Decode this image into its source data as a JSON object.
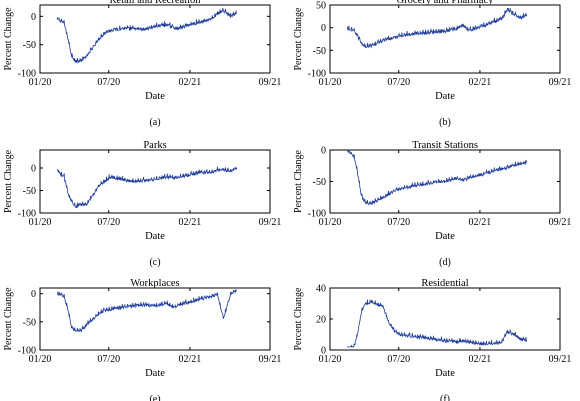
{
  "figure": {
    "x_ticks": [
      "01/20",
      "07/20",
      "02/21",
      "09/21"
    ]
  },
  "colors": {
    "line": "#1f3d99",
    "axis": "#000000"
  },
  "chart_data": [
    {
      "type": "line",
      "title": "Retail and Recreation",
      "xlabel": "Date",
      "ylabel": "Percent Change",
      "caption": "(a)",
      "ylim": [
        -100,
        20
      ],
      "yticks": [
        "0",
        "-50",
        "-100"
      ],
      "ytick_values": [
        0,
        -50,
        -100
      ],
      "xlim": [
        "2020-01-01",
        "2021-09-01"
      ],
      "x": [
        "2020-02-15",
        "2020-02-25",
        "2020-03-05",
        "2020-03-15",
        "2020-03-25",
        "2020-04-05",
        "2020-04-20",
        "2020-05-05",
        "2020-05-20",
        "2020-06-05",
        "2020-06-20",
        "2020-07-05",
        "2020-08-01",
        "2020-09-01",
        "2020-10-01",
        "2020-11-01",
        "2020-12-01",
        "2020-12-20",
        "2021-01-01",
        "2021-02-01",
        "2021-03-01",
        "2021-04-01",
        "2021-04-15",
        "2021-05-01",
        "2021-05-20",
        "2021-06-05"
      ],
      "y": [
        -5,
        -8,
        -12,
        -40,
        -70,
        -80,
        -78,
        -70,
        -55,
        -40,
        -30,
        -25,
        -22,
        -22,
        -24,
        -18,
        -15,
        -20,
        -22,
        -15,
        -10,
        -5,
        5,
        10,
        0,
        5
      ]
    },
    {
      "type": "line",
      "title": "Grocery and Pharmacy",
      "xlabel": "Date",
      "ylabel": "Percent Change",
      "caption": "(b)",
      "ylim": [
        -100,
        50
      ],
      "yticks": [
        "50",
        "0",
        "-50",
        "-100"
      ],
      "ytick_values": [
        50,
        0,
        -50,
        -100
      ],
      "xlim": [
        "2020-01-01",
        "2021-09-01"
      ],
      "x": [
        "2020-02-15",
        "2020-02-25",
        "2020-03-05",
        "2020-03-15",
        "2020-03-25",
        "2020-04-05",
        "2020-04-20",
        "2020-05-05",
        "2020-05-20",
        "2020-06-05",
        "2020-06-20",
        "2020-07-05",
        "2020-08-01",
        "2020-09-01",
        "2020-10-01",
        "2020-11-01",
        "2020-12-01",
        "2020-12-20",
        "2021-01-01",
        "2021-02-01",
        "2021-03-01",
        "2021-04-01",
        "2021-04-15",
        "2021-05-01",
        "2021-05-20",
        "2021-06-05"
      ],
      "y": [
        -2,
        -5,
        -8,
        -20,
        -35,
        -42,
        -40,
        -35,
        -28,
        -25,
        -22,
        -18,
        -15,
        -12,
        -10,
        -8,
        -2,
        5,
        -5,
        0,
        10,
        20,
        40,
        30,
        20,
        28
      ]
    },
    {
      "type": "line",
      "title": "Parks",
      "xlabel": "Date",
      "ylabel": "Percent Change",
      "caption": "(c)",
      "ylim": [
        -100,
        40
      ],
      "yticks": [
        "0",
        "-50",
        "-100"
      ],
      "ytick_values": [
        0,
        -50,
        -100
      ],
      "xlim": [
        "2020-01-01",
        "2021-09-01"
      ],
      "x": [
        "2020-02-15",
        "2020-02-25",
        "2020-03-05",
        "2020-03-15",
        "2020-03-25",
        "2020-04-05",
        "2020-04-20",
        "2020-05-05",
        "2020-05-20",
        "2020-06-05",
        "2020-06-20",
        "2020-07-05",
        "2020-08-01",
        "2020-09-01",
        "2020-10-01",
        "2020-11-01",
        "2020-12-01",
        "2020-12-20",
        "2021-01-01",
        "2021-02-01",
        "2021-03-01",
        "2021-04-01",
        "2021-04-15",
        "2021-05-01",
        "2021-05-20",
        "2021-06-05"
      ],
      "y": [
        -5,
        -15,
        -20,
        -55,
        -75,
        -85,
        -82,
        -80,
        -60,
        -40,
        -30,
        -20,
        -25,
        -30,
        -28,
        -25,
        -20,
        -22,
        -20,
        -15,
        -10,
        -10,
        -5,
        -5,
        -8,
        0
      ]
    },
    {
      "type": "line",
      "title": "Transit Stations",
      "xlabel": "Date",
      "ylabel": "Percent Change",
      "caption": "(d)",
      "ylim": [
        -100,
        0
      ],
      "yticks": [
        "0",
        "-50",
        "-100"
      ],
      "ytick_values": [
        0,
        -50,
        -100
      ],
      "xlim": [
        "2020-01-01",
        "2021-09-01"
      ],
      "x": [
        "2020-02-15",
        "2020-02-25",
        "2020-03-05",
        "2020-03-15",
        "2020-03-25",
        "2020-04-05",
        "2020-04-20",
        "2020-05-05",
        "2020-05-20",
        "2020-06-05",
        "2020-06-20",
        "2020-07-05",
        "2020-08-01",
        "2020-09-01",
        "2020-10-01",
        "2020-11-01",
        "2020-12-01",
        "2020-12-20",
        "2021-01-01",
        "2021-02-01",
        "2021-03-01",
        "2021-04-01",
        "2021-04-15",
        "2021-05-01",
        "2021-05-20",
        "2021-06-05"
      ],
      "y": [
        -2,
        -5,
        -10,
        -40,
        -75,
        -85,
        -85,
        -80,
        -75,
        -70,
        -65,
        -62,
        -58,
        -55,
        -52,
        -50,
        -45,
        -48,
        -45,
        -40,
        -35,
        -30,
        -28,
        -25,
        -22,
        -20
      ]
    },
    {
      "type": "line",
      "title": "Workplaces",
      "xlabel": "Date",
      "ylabel": "Percent Change",
      "caption": "(e)",
      "ylim": [
        -100,
        10
      ],
      "yticks": [
        "0",
        "-50",
        "-100"
      ],
      "ytick_values": [
        0,
        -50,
        -100
      ],
      "xlim": [
        "2020-01-01",
        "2021-09-01"
      ],
      "x": [
        "2020-02-15",
        "2020-02-25",
        "2020-03-05",
        "2020-03-15",
        "2020-03-25",
        "2020-04-05",
        "2020-04-20",
        "2020-05-05",
        "2020-05-20",
        "2020-06-05",
        "2020-06-20",
        "2020-07-05",
        "2020-08-01",
        "2020-09-01",
        "2020-10-01",
        "2020-11-01",
        "2020-12-01",
        "2020-12-20",
        "2021-01-01",
        "2021-02-01",
        "2021-03-01",
        "2021-04-01",
        "2021-04-15",
        "2021-05-01",
        "2021-05-20",
        "2021-06-05"
      ],
      "y": [
        0,
        -2,
        -5,
        -30,
        -60,
        -68,
        -65,
        -55,
        -45,
        -35,
        -30,
        -28,
        -25,
        -22,
        -20,
        -22,
        -18,
        -25,
        -20,
        -15,
        -10,
        -5,
        -2,
        -45,
        0,
        5
      ]
    },
    {
      "type": "line",
      "title": "Residential",
      "xlabel": "Date",
      "ylabel": "Percent Change",
      "caption": "(f)",
      "ylim": [
        0,
        40
      ],
      "yticks": [
        "40",
        "20",
        "0"
      ],
      "ytick_values": [
        40,
        20,
        0
      ],
      "xlim": [
        "2020-01-01",
        "2021-09-01"
      ],
      "x": [
        "2020-02-15",
        "2020-02-25",
        "2020-03-05",
        "2020-03-15",
        "2020-03-25",
        "2020-04-05",
        "2020-04-20",
        "2020-05-05",
        "2020-05-20",
        "2020-06-05",
        "2020-06-20",
        "2020-07-05",
        "2020-08-01",
        "2020-09-01",
        "2020-10-01",
        "2020-11-01",
        "2020-12-01",
        "2020-12-20",
        "2021-01-01",
        "2021-02-01",
        "2021-03-01",
        "2021-04-01",
        "2021-04-15",
        "2021-05-01",
        "2021-05-20",
        "2021-06-05"
      ],
      "y": [
        1,
        1,
        2,
        12,
        25,
        30,
        31,
        29,
        28,
        18,
        12,
        10,
        9,
        8,
        7,
        6,
        5,
        6,
        5,
        4,
        4,
        5,
        12,
        10,
        7,
        6
      ]
    }
  ]
}
